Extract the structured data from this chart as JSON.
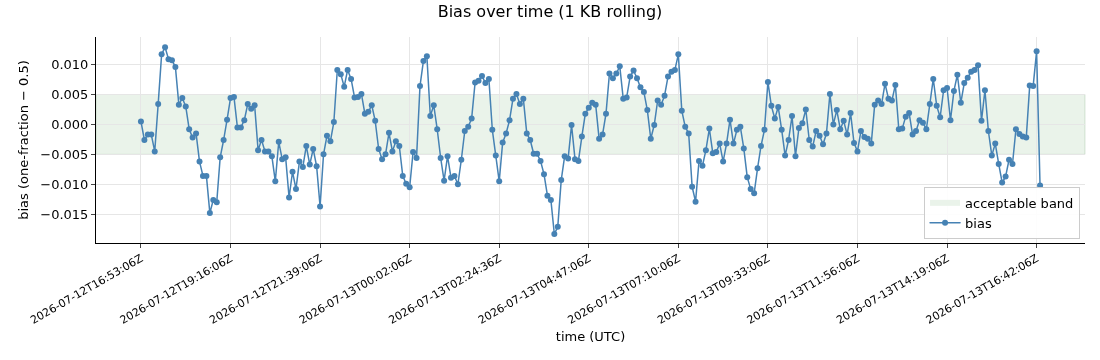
{
  "chart_data": {
    "type": "line",
    "title": "Bias over time (1 KB rolling)",
    "xlabel": "time (UTC)",
    "ylabel": "bias (one-fraction − 0.5)",
    "categories": [
      "2026-07-12T16:53:06Z",
      null,
      null,
      null,
      null,
      null,
      null,
      null,
      null,
      null,
      null,
      null,
      null,
      null,
      null,
      null,
      null,
      null,
      null,
      null,
      null,
      null,
      null,
      null,
      null,
      null,
      "2026-07-12T19:16:06Z",
      null,
      null,
      null,
      null,
      null,
      null,
      null,
      null,
      null,
      null,
      null,
      null,
      null,
      null,
      null,
      null,
      null,
      null,
      null,
      null,
      null,
      null,
      null,
      null,
      null,
      "2026-07-12T21:39:06Z",
      null,
      null,
      null,
      null,
      null,
      null,
      null,
      null,
      null,
      null,
      null,
      null,
      null,
      null,
      null,
      null,
      null,
      null,
      null,
      null,
      null,
      null,
      null,
      null,
      null,
      "2026-07-13T00:02:06Z",
      null,
      null,
      null,
      null,
      null,
      null,
      null,
      null,
      null,
      null,
      null,
      null,
      null,
      null,
      null,
      null,
      null,
      null,
      null,
      null,
      null,
      null,
      null,
      null,
      null,
      "2026-07-13T02:24:36Z",
      null,
      null,
      null,
      null,
      null,
      null,
      null,
      null,
      null,
      null,
      null,
      null,
      null,
      null,
      null,
      null,
      null,
      null,
      null,
      null,
      null,
      null,
      null,
      null,
      null,
      "2026-07-13T04:47:06Z",
      null,
      null,
      null,
      null,
      null,
      null,
      null,
      null,
      null,
      null,
      null,
      null,
      null,
      null,
      null,
      null,
      null,
      null,
      null,
      null,
      null,
      null,
      null,
      null,
      null,
      "2026-07-13T07:10:06Z",
      null,
      null,
      null,
      null,
      null,
      null,
      null,
      null,
      null,
      null,
      null,
      null,
      null,
      null,
      null,
      null,
      null,
      null,
      null,
      null,
      null,
      null,
      null,
      null,
      null,
      "2026-07-13T09:33:06Z",
      null,
      null,
      null,
      null,
      null,
      null,
      null,
      null,
      null,
      null,
      null,
      null,
      null,
      null,
      null,
      null,
      null,
      null,
      null,
      null,
      null,
      null,
      null,
      null,
      null,
      "2026-07-13T11:56:06Z",
      null,
      null,
      null,
      null,
      null,
      null,
      null,
      null,
      null,
      null,
      null,
      null,
      null,
      null,
      null,
      null,
      null,
      null,
      null,
      null,
      null,
      null,
      null,
      null,
      null,
      "2026-07-13T14:19:06Z",
      null,
      null,
      null,
      null,
      null,
      null,
      null,
      null,
      null,
      null,
      null,
      null,
      null,
      null,
      null,
      null,
      null,
      null,
      null,
      null,
      null,
      null,
      null,
      null,
      null,
      "2026-07-13T16:42:06Z",
      null
    ],
    "series": [
      {
        "name": "bias",
        "color": "#4682b4",
        "values": [
          0.0005,
          -0.0026,
          -0.0017,
          -0.0017,
          -0.0045,
          0.0034,
          0.0117,
          0.0129,
          0.0109,
          0.0107,
          0.0096,
          0.0033,
          0.0044,
          0.003,
          -0.0008,
          -0.0022,
          -0.0015,
          -0.0062,
          -0.0086,
          -0.0086,
          -0.0148,
          -0.0126,
          -0.013,
          -0.0055,
          -0.0026,
          0.0008,
          0.0044,
          0.0046,
          -0.0005,
          -0.0005,
          0.0007,
          0.0034,
          0.0026,
          0.0032,
          -0.0043,
          -0.0026,
          -0.0045,
          -0.0045,
          -0.0053,
          -0.0095,
          -0.0029,
          -0.0058,
          -0.0055,
          -0.0122,
          -0.0079,
          -0.0108,
          -0.0062,
          -0.0071,
          -0.0036,
          -0.0067,
          -0.0041,
          -0.007,
          -0.0137,
          -0.005,
          -0.0019,
          -0.0028,
          0.0004,
          0.0091,
          0.0084,
          0.0063,
          0.0091,
          0.0076,
          0.0045,
          0.0046,
          0.0051,
          0.0018,
          0.0021,
          0.0032,
          0.0006,
          -0.0041,
          -0.0058,
          -0.005,
          -0.0014,
          -0.0045,
          -0.0028,
          -0.0036,
          -0.0086,
          -0.0099,
          -0.0105,
          -0.0046,
          -0.0056,
          0.0064,
          0.0106,
          0.0114,
          0.0014,
          0.0032,
          -0.0008,
          -0.0056,
          -0.0094,
          -0.0053,
          -0.0089,
          -0.0086,
          -0.01,
          -0.0059,
          -0.0011,
          -0.0004,
          0.001,
          0.007,
          0.0073,
          0.0081,
          0.0069,
          0.0076,
          -0.0009,
          -0.0052,
          -0.0095,
          -0.003,
          -0.0015,
          0.0007,
          0.0043,
          0.0051,
          0.0034,
          0.0043,
          -0.0015,
          -0.0026,
          -0.0049,
          -0.0049,
          -0.0061,
          -0.0083,
          -0.0119,
          -0.0126,
          -0.0183,
          -0.0171,
          -0.0093,
          -0.0053,
          -0.0057,
          -0.0001,
          -0.0058,
          -0.0061,
          -0.002,
          0.0018,
          0.0028,
          0.0036,
          0.0033,
          -0.0024,
          -0.0017,
          0.0018,
          0.0085,
          0.0077,
          0.0085,
          0.0097,
          0.0043,
          0.0045,
          0.008,
          0.009,
          0.0077,
          0.0062,
          0.0054,
          0.0024,
          -0.0024,
          -0.0001,
          0.004,
          0.0033,
          0.0048,
          0.008,
          0.0088,
          0.0091,
          0.0117,
          0.0023,
          -0.0004,
          -0.0015,
          -0.0104,
          -0.0129,
          -0.0061,
          -0.0069,
          -0.0043,
          -0.0007,
          -0.0048,
          -0.0046,
          -0.0032,
          -0.0062,
          -0.0032,
          0.0008,
          -0.0032,
          -0.0009,
          -0.0004,
          -0.004,
          -0.0088,
          -0.0108,
          -0.0115,
          -0.0073,
          -0.0036,
          -0.0009,
          0.0071,
          0.0031,
          0.001,
          0.0029,
          -0.0009,
          -0.0052,
          -0.0026,
          0.0014,
          -0.0053,
          -0.0006,
          0.0002,
          0.0025,
          -0.0026,
          -0.0037,
          -0.0011,
          -0.0019,
          -0.0033,
          -0.0015,
          0.0051,
          0.0,
          0.0024,
          -0.0008,
          0.0006,
          -0.0017,
          0.0019,
          -0.0031,
          -0.0045,
          -0.0011,
          -0.0021,
          -0.0024,
          -0.0032,
          0.0033,
          0.004,
          0.0034,
          0.0068,
          0.0043,
          0.004,
          0.0066,
          -0.0008,
          -0.0007,
          0.0013,
          0.0019,
          -0.0017,
          -0.0011,
          0.0007,
          0.0003,
          -0.0008,
          0.0034,
          0.0076,
          0.0031,
          0.0012,
          0.0057,
          0.0061,
          0.0007,
          0.0056,
          0.0083,
          0.0036,
          0.0069,
          0.0078,
          0.0088,
          0.0091,
          0.0099,
          0.0006,
          0.0057,
          -0.0011,
          -0.0052,
          -0.0032,
          -0.0066,
          -0.0097,
          -0.0087,
          -0.0059,
          -0.0066,
          -0.0008,
          -0.0016,
          -0.002,
          -0.0022,
          0.0065,
          0.0064,
          0.0122,
          -0.0102
        ]
      }
    ],
    "ylim": [
      -0.0198,
      0.0146
    ],
    "yticks": [
      {
        "value": -0.015,
        "label": "−0.015"
      },
      {
        "value": -0.01,
        "label": "−0.010"
      },
      {
        "value": -0.005,
        "label": "−0.005"
      },
      {
        "value": 0,
        "label": "0.000"
      },
      {
        "value": 0.005,
        "label": "0.005"
      },
      {
        "value": 0.01,
        "label": "0.010"
      }
    ],
    "bands": [
      {
        "axis": "y",
        "from": -0.005,
        "to": 0.005,
        "label": "acceptable band",
        "color": "#eaf3ea"
      }
    ],
    "grid": true,
    "legend": "bottom right",
    "marker": "circle",
    "line_style": "solid"
  }
}
